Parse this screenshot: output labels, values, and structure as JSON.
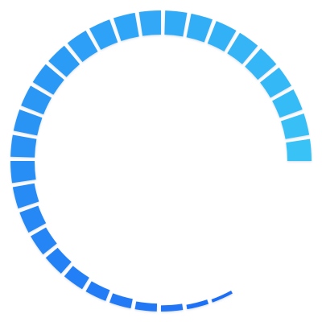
{
  "spinner": {
    "icon": "segmented-circular-progress-spinner-icon",
    "segment_count": 36,
    "visible_segments": 30,
    "start_color": "#1e6ef5",
    "end_color": "#38c2f6",
    "background_color": "#ffffff"
  }
}
